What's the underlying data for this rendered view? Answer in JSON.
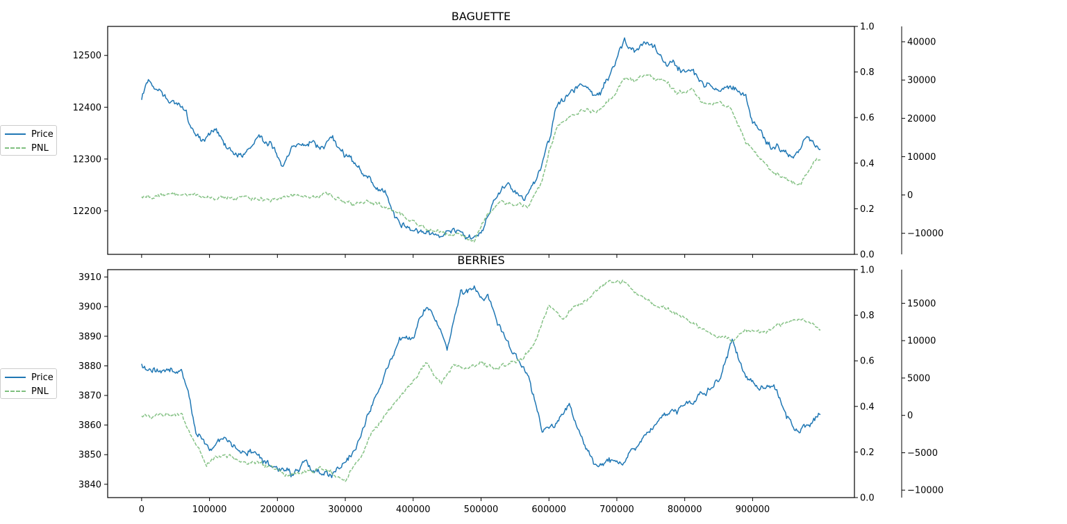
{
  "chart_data": [
    {
      "type": "line",
      "title": "BAGUETTE",
      "x_ticks": [
        0,
        100000,
        200000,
        300000,
        400000,
        500000,
        600000,
        700000,
        800000,
        900000
      ],
      "xlim": [
        -50000,
        1050000
      ],
      "axes": {
        "price": {
          "ylim": [
            12116,
            12556
          ],
          "ticks": [
            12200,
            12300,
            12400,
            12500
          ]
        },
        "unit": {
          "ylim": [
            0.0,
            1.0
          ],
          "ticks": [
            "0.0",
            "0.2",
            "0.4",
            "0.6",
            "0.8",
            "1.0"
          ]
        },
        "pnl": {
          "ylim": [
            -15500,
            44000
          ],
          "ticks": [
            -10000,
            0,
            10000,
            20000,
            30000,
            40000
          ]
        }
      },
      "legend": {
        "placement": "left",
        "entries": [
          "Price",
          "PNL"
        ]
      },
      "series": [
        {
          "name": "Price",
          "axis": "price",
          "color": "#1f77b4",
          "style": "solid",
          "x": [
            0,
            10000,
            20000,
            40000,
            60000,
            75000,
            90000,
            110000,
            130000,
            150000,
            170000,
            190000,
            210000,
            230000,
            250000,
            270000,
            280000,
            300000,
            320000,
            340000,
            360000,
            380000,
            400000,
            420000,
            440000,
            460000,
            480000,
            500000,
            520000,
            540000,
            560000,
            580000,
            600000,
            610000,
            630000,
            650000,
            670000,
            690000,
            710000,
            730000,
            750000,
            770000,
            790000,
            810000,
            830000,
            850000,
            870000,
            890000,
            900000,
            920000,
            940000,
            960000,
            980000,
            1000000
          ],
          "values": [
            12420,
            12455,
            12440,
            12420,
            12400,
            12355,
            12340,
            12360,
            12320,
            12305,
            12340,
            12330,
            12290,
            12325,
            12330,
            12320,
            12340,
            12305,
            12280,
            12255,
            12230,
            12175,
            12165,
            12160,
            12150,
            12155,
            12145,
            12155,
            12225,
            12255,
            12220,
            12250,
            12330,
            12400,
            12430,
            12440,
            12420,
            12460,
            12530,
            12510,
            12530,
            12490,
            12475,
            12465,
            12440,
            12435,
            12440,
            12420,
            12370,
            12330,
            12315,
            12300,
            12340,
            12320
          ]
        },
        {
          "name": "PNL",
          "axis": "pnl",
          "color": "#7fbf7f",
          "style": "dashed",
          "x": [
            0,
            20000,
            50000,
            80000,
            110000,
            140000,
            170000,
            200000,
            220000,
            240000,
            270000,
            290000,
            310000,
            330000,
            350000,
            370000,
            390000,
            410000,
            430000,
            450000,
            470000,
            490000,
            510000,
            530000,
            550000,
            570000,
            590000,
            600000,
            610000,
            630000,
            650000,
            670000,
            690000,
            710000,
            730000,
            750000,
            770000,
            790000,
            810000,
            830000,
            850000,
            870000,
            890000,
            910000,
            930000,
            950000,
            970000,
            990000,
            1000000
          ],
          "values": [
            0,
            0,
            0,
            -500,
            -400,
            -600,
            -800,
            -1200,
            -100,
            -300,
            -200,
            -1200,
            -2500,
            -1500,
            -2800,
            -4500,
            -6000,
            -8000,
            -9000,
            -10500,
            -10800,
            -11200,
            -5000,
            -2000,
            -2500,
            -3000,
            4000,
            11500,
            17000,
            21000,
            22500,
            22000,
            24500,
            30000,
            30500,
            31000,
            29500,
            26500,
            27000,
            23500,
            24000,
            22000,
            14000,
            10000,
            6000,
            4000,
            2500,
            8000,
            9000
          ]
        }
      ]
    },
    {
      "type": "line",
      "title": "BERRIES",
      "x_ticks": [
        0,
        100000,
        200000,
        300000,
        400000,
        500000,
        600000,
        700000,
        800000,
        900000
      ],
      "x_tick_labels": [
        "0",
        "100000",
        "200000",
        "300000",
        "400000",
        "500000",
        "600000",
        "700000",
        "800000",
        "900000"
      ],
      "xlim": [
        -50000,
        1050000
      ],
      "axes": {
        "price": {
          "ylim": [
            3835.5,
            3912.5
          ],
          "ticks": [
            3840,
            3850,
            3860,
            3870,
            3880,
            3890,
            3900,
            3910
          ]
        },
        "unit": {
          "ylim": [
            0.0,
            1.0
          ],
          "ticks": [
            "0.0",
            "0.2",
            "0.4",
            "0.6",
            "0.8",
            "1.0"
          ]
        },
        "pnl": {
          "ylim": [
            -11000,
            19500
          ],
          "ticks": [
            -10000,
            -5000,
            0,
            5000,
            10000,
            15000
          ]
        }
      },
      "legend": {
        "placement": "left",
        "entries": [
          "Price",
          "PNL"
        ]
      },
      "series": [
        {
          "name": "Price",
          "axis": "price",
          "color": "#1f77b4",
          "style": "solid",
          "x": [
            0,
            20000,
            40000,
            60000,
            70000,
            80000,
            100000,
            120000,
            140000,
            160000,
            180000,
            200000,
            220000,
            240000,
            260000,
            280000,
            300000,
            320000,
            340000,
            360000,
            380000,
            400000,
            420000,
            440000,
            450000,
            470000,
            490000,
            510000,
            530000,
            550000,
            570000,
            590000,
            610000,
            630000,
            650000,
            670000,
            690000,
            710000,
            730000,
            750000,
            770000,
            790000,
            810000,
            830000,
            850000,
            870000,
            890000,
            910000,
            930000,
            950000,
            970000,
            990000,
            1000000
          ],
          "values": [
            3881,
            3879,
            3879,
            3878,
            3870,
            3858,
            3852,
            3855,
            3852,
            3851,
            3847,
            3846,
            3843,
            3848,
            3844,
            3843,
            3847,
            3855,
            3867,
            3878,
            3888,
            3890,
            3902,
            3893,
            3885,
            3905,
            3906,
            3903,
            3892,
            3883,
            3876,
            3858,
            3860,
            3866,
            3855,
            3846,
            3848,
            3848,
            3853,
            3858,
            3862,
            3866,
            3868,
            3872,
            3875,
            3888,
            3876,
            3874,
            3875,
            3863,
            3858,
            3862,
            3865
          ]
        },
        {
          "name": "PNL",
          "axis": "pnl",
          "color": "#7fbf7f",
          "style": "dashed",
          "x": [
            0,
            20000,
            40000,
            60000,
            65000,
            80000,
            95000,
            110000,
            140000,
            170000,
            200000,
            220000,
            240000,
            260000,
            280000,
            300000,
            320000,
            340000,
            360000,
            380000,
            400000,
            420000,
            440000,
            460000,
            480000,
            500000,
            520000,
            540000,
            560000,
            580000,
            600000,
            620000,
            640000,
            660000,
            680000,
            700000,
            710000,
            730000,
            750000,
            770000,
            790000,
            810000,
            830000,
            850000,
            870000,
            890000,
            910000,
            930000,
            950000,
            970000,
            990000,
            1000000
          ],
          "values": [
            0,
            0,
            0,
            0,
            -1500,
            -3500,
            -6500,
            -5500,
            -5600,
            -6500,
            -7300,
            -8000,
            -7500,
            -7000,
            -7800,
            -8500,
            -5800,
            -2500,
            0,
            2500,
            4800,
            6800,
            4200,
            6800,
            6400,
            7000,
            6300,
            6800,
            7500,
            10000,
            14500,
            13000,
            14500,
            15500,
            17500,
            17800,
            17900,
            16500,
            15000,
            14500,
            13500,
            12000,
            11200,
            10500,
            10200,
            11500,
            11000,
            11500,
            12500,
            13000,
            12000,
            11500
          ]
        }
      ]
    }
  ]
}
